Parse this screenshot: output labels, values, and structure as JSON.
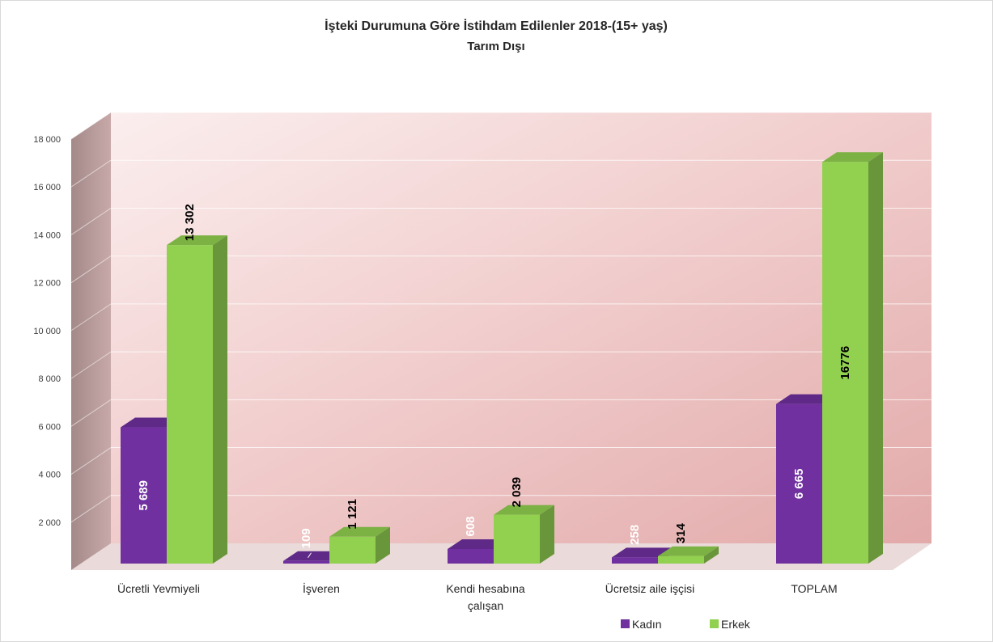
{
  "chart_data": {
    "type": "bar",
    "title": "İşteki Durumuna Göre İstihdam Edilenler 2018-(15+ yaş)",
    "subtitle": "Tarım Dışı",
    "categories": [
      [
        "Ücretli Yevmiyeli"
      ],
      [
        "İşveren"
      ],
      [
        "Kendi hesabına",
        "çalışan"
      ],
      [
        "Ücretsiz aile işçisi"
      ],
      [
        "TOPLAM"
      ]
    ],
    "series": [
      {
        "name": "Kadın",
        "color": "#7030a0",
        "values": [
          5689,
          109,
          608,
          258,
          6665
        ],
        "labels": [
          "5 689",
          "109",
          "608",
          "258",
          "6 665"
        ]
      },
      {
        "name": "Erkek",
        "color": "#92d050",
        "values": [
          13302,
          1121,
          2039,
          314,
          16776
        ],
        "labels": [
          "13 302",
          "1 121",
          "2 039",
          "314",
          "16776"
        ]
      }
    ],
    "ylim": [
      0,
      18000
    ],
    "yticks": [
      0,
      2000,
      4000,
      6000,
      8000,
      10000,
      12000,
      14000,
      16000,
      18000
    ],
    "ytick_labels": [
      "",
      "2 000",
      "4 000",
      "6 000",
      "8 000",
      "10 000",
      "12 000",
      "14 000",
      "16 000",
      "18 000"
    ],
    "grid": true,
    "legend_position": "bottom-right",
    "style": "3d-clustered-column"
  }
}
